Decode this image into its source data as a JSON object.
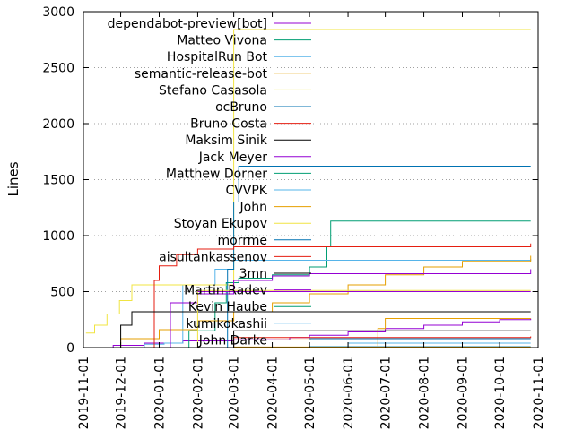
{
  "chart_data": {
    "type": "line",
    "title": "",
    "xlabel": "",
    "ylabel": "Lines",
    "ylim": [
      0,
      3000
    ],
    "xlim": [
      "2019-11-01",
      "2020-11-01"
    ],
    "y_ticks": [
      "0",
      "500",
      "1000",
      "1500",
      "2000",
      "2500",
      "3000"
    ],
    "x_ticks": [
      "2019-11-01",
      "2019-12-01",
      "2020-01-01",
      "2020-02-01",
      "2020-03-01",
      "2020-04-01",
      "2020-05-01",
      "2020-06-01",
      "2020-07-01",
      "2020-08-01",
      "2020-09-01",
      "2020-10-01",
      "2020-11-01"
    ],
    "grid": "horizontal dotted",
    "legend_placement": "top-left",
    "series": [
      {
        "name": "dependabot-preview[bot]",
        "color": "#9400d3",
        "points": [
          [
            "2019-11-10",
            0
          ],
          [
            "2019-11-25",
            20
          ],
          [
            "2019-12-20",
            40
          ],
          [
            "2020-01-20",
            60
          ],
          [
            "2020-03-01",
            70
          ],
          [
            "2020-04-15",
            90
          ],
          [
            "2020-05-01",
            110
          ],
          [
            "2020-06-01",
            140
          ],
          [
            "2020-07-01",
            170
          ],
          [
            "2020-08-01",
            200
          ],
          [
            "2020-09-01",
            230
          ],
          [
            "2020-10-01",
            250
          ],
          [
            "2020-10-26",
            260
          ]
        ]
      },
      {
        "name": "Matteo Vivona",
        "color": "#009e73",
        "points": [
          [
            "2020-01-10",
            0
          ],
          [
            "2020-01-25",
            150
          ],
          [
            "2020-02-15",
            400
          ],
          [
            "2020-02-24",
            580
          ],
          [
            "2020-03-05",
            620
          ],
          [
            "2020-04-01",
            650
          ],
          [
            "2020-05-01",
            720
          ],
          [
            "2020-05-15",
            900
          ],
          [
            "2020-05-18",
            1130
          ],
          [
            "2020-10-26",
            1130
          ]
        ]
      },
      {
        "name": "HospitalRun Bot",
        "color": "#56b4e9",
        "points": [
          [
            "2019-12-10",
            0
          ],
          [
            "2019-12-20",
            30
          ],
          [
            "2020-01-05",
            40
          ],
          [
            "2020-01-20",
            560
          ],
          [
            "2020-02-15",
            700
          ],
          [
            "2020-03-01",
            780
          ],
          [
            "2020-05-01",
            780
          ],
          [
            "2020-10-26",
            790
          ]
        ]
      },
      {
        "name": "semantic-release-bot",
        "color": "#e69f00",
        "points": [
          [
            "2019-11-10",
            0
          ],
          [
            "2019-12-01",
            80
          ],
          [
            "2020-01-01",
            160
          ],
          [
            "2020-02-01",
            240
          ],
          [
            "2020-03-01",
            320
          ],
          [
            "2020-04-01",
            400
          ],
          [
            "2020-05-01",
            480
          ],
          [
            "2020-06-01",
            560
          ],
          [
            "2020-07-01",
            650
          ],
          [
            "2020-08-01",
            720
          ],
          [
            "2020-09-01",
            770
          ],
          [
            "2020-10-26",
            820
          ]
        ]
      },
      {
        "name": "Stefano Casasola",
        "color": "#f0e442",
        "points": [
          [
            "2019-11-03",
            130
          ],
          [
            "2019-11-10",
            200
          ],
          [
            "2019-11-20",
            300
          ],
          [
            "2019-11-30",
            420
          ],
          [
            "2019-12-10",
            560
          ],
          [
            "2020-03-01",
            560
          ],
          [
            "2020-03-01",
            2840
          ],
          [
            "2020-10-26",
            2840
          ]
        ]
      },
      {
        "name": "ocBruno",
        "color": "#0072b2",
        "points": [
          [
            "2020-02-20",
            0
          ],
          [
            "2020-02-25",
            700
          ],
          [
            "2020-03-01",
            1300
          ],
          [
            "2020-03-05",
            1620
          ],
          [
            "2020-10-26",
            1620
          ]
        ]
      },
      {
        "name": "Bruno Costa",
        "color": "#e51e10",
        "points": [
          [
            "2019-12-20",
            0
          ],
          [
            "2019-12-28",
            600
          ],
          [
            "2020-01-01",
            730
          ],
          [
            "2020-01-15",
            830
          ],
          [
            "2020-02-01",
            880
          ],
          [
            "2020-03-01",
            900
          ],
          [
            "2020-10-26",
            930
          ]
        ]
      },
      {
        "name": "Maksim Sinik",
        "color": "#000000",
        "points": [
          [
            "2019-11-20",
            0
          ],
          [
            "2019-12-01",
            200
          ],
          [
            "2019-12-10",
            320
          ],
          [
            "2020-10-26",
            320
          ]
        ]
      },
      {
        "name": "Jack Meyer",
        "color": "#9400d3",
        "points": [
          [
            "2020-01-01",
            0
          ],
          [
            "2020-01-10",
            400
          ],
          [
            "2020-02-01",
            480
          ],
          [
            "2020-03-01",
            600
          ],
          [
            "2020-04-01",
            640
          ],
          [
            "2020-05-01",
            660
          ],
          [
            "2020-10-26",
            700
          ]
        ]
      },
      {
        "name": "Matthew Dorner",
        "color": "#009e73",
        "points": [
          [
            "2020-08-01",
            0
          ],
          [
            "2020-10-26",
            0
          ]
        ]
      },
      {
        "name": "CVVPK",
        "color": "#56b4e9",
        "points": [
          [
            "2020-05-25",
            0
          ],
          [
            "2020-06-01",
            40
          ],
          [
            "2020-10-26",
            40
          ]
        ]
      },
      {
        "name": "John",
        "color": "#e69f00",
        "points": [
          [
            "2020-06-22",
            0
          ],
          [
            "2020-06-25",
            170
          ],
          [
            "2020-07-01",
            260
          ],
          [
            "2020-10-26",
            260
          ]
        ]
      },
      {
        "name": "Stoyan Ekupov",
        "color": "#f0e442",
        "points": [
          [
            "2020-01-25",
            0
          ],
          [
            "2020-02-01",
            510
          ],
          [
            "2020-10-26",
            510
          ]
        ]
      },
      {
        "name": "morrme",
        "color": "#0072b2",
        "points": [
          [
            "2020-05-01",
            80
          ],
          [
            "2020-10-26",
            80
          ]
        ]
      },
      {
        "name": "aisultankassenov",
        "color": "#e51e10",
        "points": [
          [
            "2020-02-25",
            0
          ],
          [
            "2020-03-01",
            90
          ],
          [
            "2020-10-26",
            100
          ]
        ]
      },
      {
        "name": "3mn",
        "color": "#000000",
        "points": [
          [
            "2020-02-01",
            0
          ],
          [
            "2020-03-01",
            150
          ],
          [
            "2020-10-26",
            150
          ]
        ]
      },
      {
        "name": "Martin Radev",
        "color": "#9400d3",
        "points": [
          [
            "2020-02-01",
            500
          ],
          [
            "2020-10-26",
            500
          ]
        ]
      },
      {
        "name": "Kevin Haube",
        "color": "#009e73",
        "points": [
          [
            "2020-07-01",
            0
          ],
          [
            "2020-10-26",
            0
          ]
        ]
      },
      {
        "name": "kumikokashii",
        "color": "#56b4e9",
        "points": [
          [
            "2020-05-01",
            10
          ],
          [
            "2020-10-26",
            10
          ]
        ]
      },
      {
        "name": "John Darke",
        "color": "#e69f00",
        "points": [
          [
            "2020-03-01",
            5
          ],
          [
            "2020-10-26",
            5
          ]
        ]
      }
    ]
  }
}
